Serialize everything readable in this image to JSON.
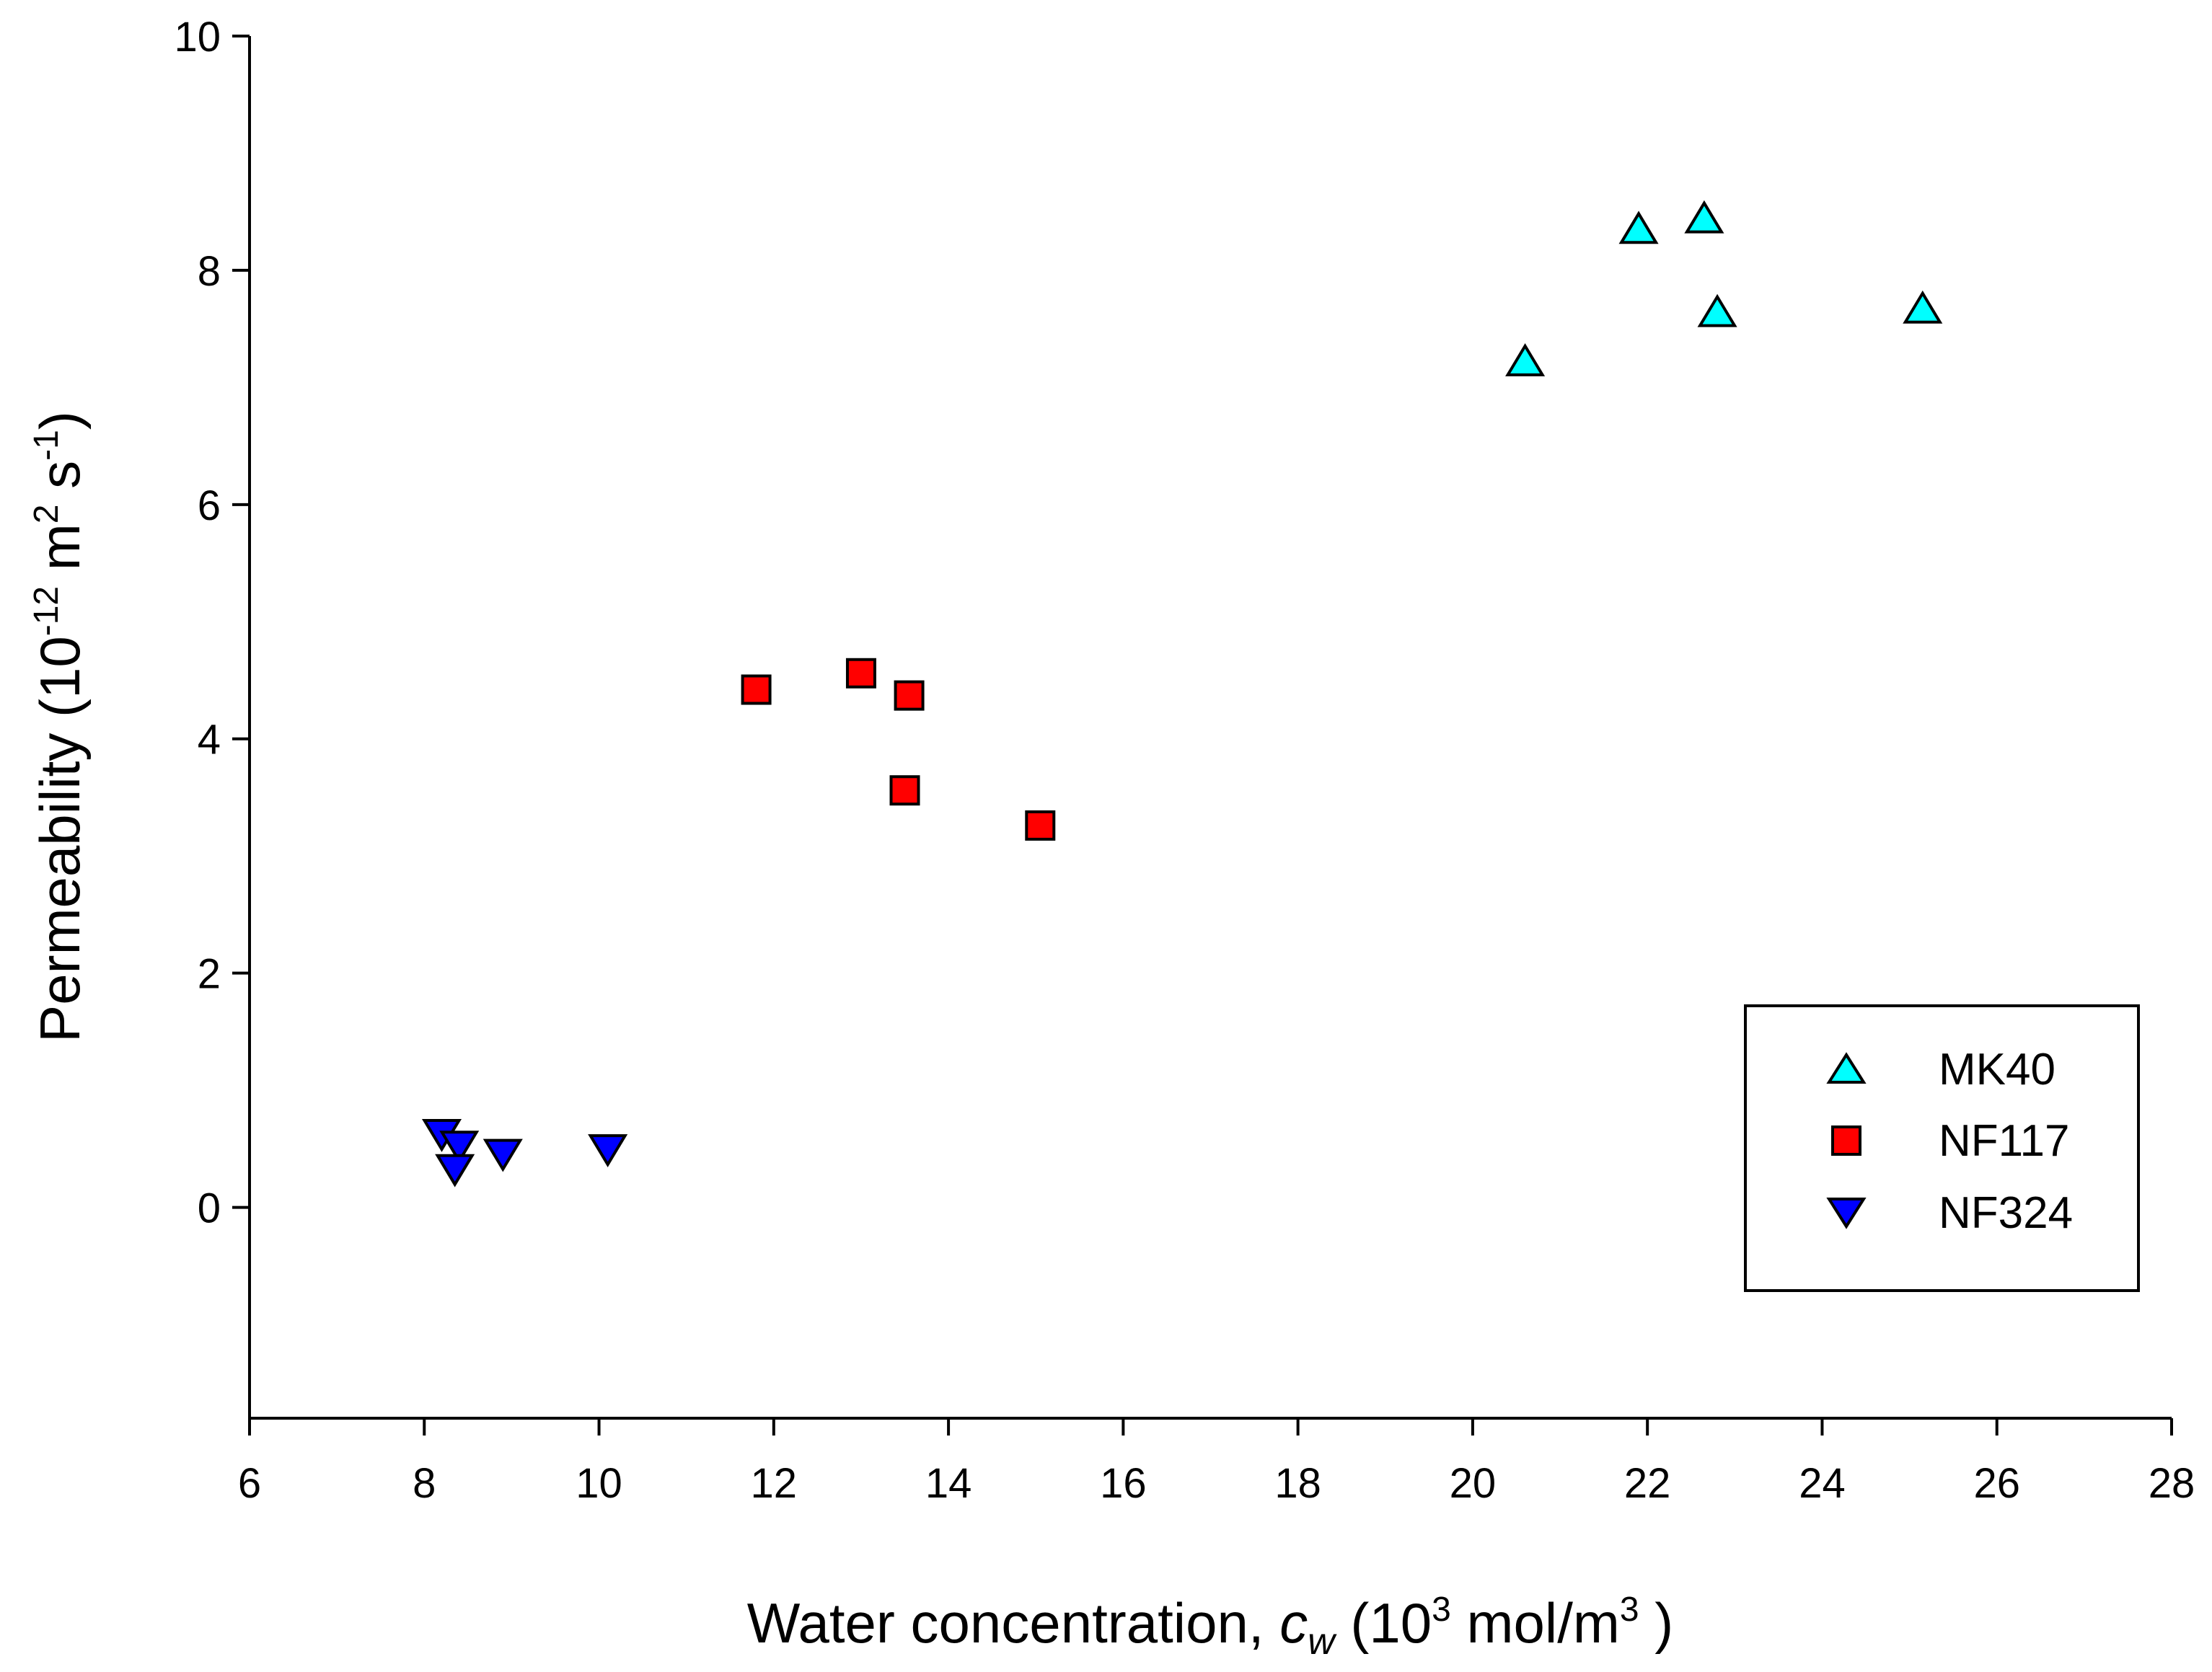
{
  "chart_data": {
    "type": "scatter",
    "title": "",
    "xlabel": {
      "prefix": "Water concentration, ",
      "var": "c",
      "var_sub": "w",
      "unit_open": " (10",
      "unit_sup": "3",
      "unit_mid": " mol/m",
      "unit_sup2": "3",
      "unit_close": " )"
    },
    "ylabel": {
      "prefix": "Permeability (10",
      "sup1": "-12",
      "mid": " m",
      "sup2": "2",
      "mid2": " s",
      "sup3": "-1",
      "close": ")"
    },
    "xlim": [
      6,
      28
    ],
    "ylim": [
      -1.8,
      10
    ],
    "xticks": [
      "6",
      "8",
      "10",
      "12",
      "14",
      "16",
      "18",
      "20",
      "22",
      "24",
      "26",
      "28"
    ],
    "yticks": [
      "0",
      "2",
      "4",
      "6",
      "8",
      "10"
    ],
    "grid": false,
    "legend_position": "bottom-right",
    "series": [
      {
        "name": "MK40",
        "marker": "triangle-up",
        "color": "#00FFFF",
        "points": [
          [
            20.6,
            7.2
          ],
          [
            21.9,
            8.33
          ],
          [
            22.65,
            8.42
          ],
          [
            22.8,
            7.62
          ],
          [
            25.15,
            7.65
          ]
        ]
      },
      {
        "name": "NF117",
        "marker": "square",
        "color": "#FF0000",
        "points": [
          [
            11.8,
            4.42
          ],
          [
            13.0,
            4.56
          ],
          [
            13.55,
            4.37
          ],
          [
            13.5,
            3.56
          ],
          [
            15.05,
            3.26
          ]
        ]
      },
      {
        "name": "NF324",
        "marker": "triangle-down",
        "color": "#0000FF",
        "points": [
          [
            8.2,
            0.65
          ],
          [
            8.4,
            0.55
          ],
          [
            8.35,
            0.35
          ],
          [
            8.9,
            0.48
          ],
          [
            10.1,
            0.52
          ]
        ]
      }
    ]
  }
}
